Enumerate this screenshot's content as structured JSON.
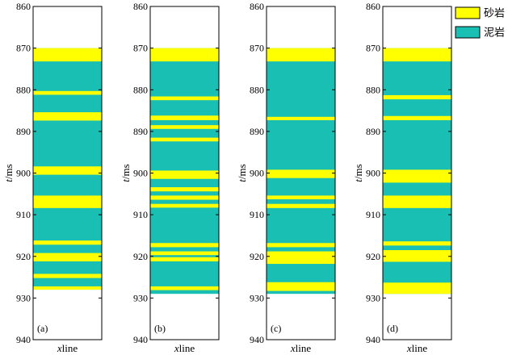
{
  "chart_data": {
    "type": "lithology-column",
    "ylim": [
      860,
      940
    ],
    "yticks": [
      860,
      870,
      880,
      890,
      900,
      910,
      920,
      930,
      940
    ],
    "ylabel_italic": "t",
    "ylabel_unit": "/ms",
    "xlabel": "xline",
    "colors": {
      "sand": "#ffff00",
      "mud": "#1abfb3"
    },
    "legend": [
      {
        "key": "sand",
        "label": "砂岩"
      },
      {
        "key": "mud",
        "label": "泥岩"
      }
    ],
    "panels": [
      {
        "label": "(a)",
        "top": 870,
        "bottom": 928,
        "sand_intervals": [
          [
            870,
            873.2
          ],
          [
            880.3,
            881.2
          ],
          [
            885.4,
            887.4
          ],
          [
            898.4,
            900.4
          ],
          [
            905.4,
            908.4
          ],
          [
            916.2,
            917.2
          ],
          [
            919.2,
            921.2
          ],
          [
            924.2,
            925.2
          ],
          [
            927.2,
            928.0
          ]
        ]
      },
      {
        "label": "(b)",
        "top": 870,
        "bottom": 929,
        "sand_intervals": [
          [
            870,
            873.2
          ],
          [
            881.6,
            882.5
          ],
          [
            886.2,
            887.3
          ],
          [
            888.5,
            889.4
          ],
          [
            891.5,
            892.4
          ],
          [
            899.4,
            901.4
          ],
          [
            903.4,
            904.4
          ],
          [
            905.4,
            906.4
          ],
          [
            907.4,
            908.3
          ],
          [
            916.8,
            917.8
          ],
          [
            918.8,
            919.7
          ],
          [
            920.2,
            921.2
          ],
          [
            927.2,
            928.1
          ]
        ]
      },
      {
        "label": "(c)",
        "top": 870,
        "bottom": 929,
        "sand_intervals": [
          [
            870,
            873.2
          ],
          [
            886.5,
            887.3
          ],
          [
            899.2,
            901.2
          ],
          [
            905.4,
            906.3
          ],
          [
            907.4,
            908.4
          ],
          [
            916.8,
            917.8
          ],
          [
            918.8,
            921.8
          ],
          [
            926.2,
            928.3
          ]
        ]
      },
      {
        "label": "(d)",
        "top": 870,
        "bottom": 929,
        "sand_intervals": [
          [
            870,
            873.2
          ],
          [
            881.3,
            882.3
          ],
          [
            886.3,
            887.3
          ],
          [
            899.2,
            902.3
          ],
          [
            905.4,
            908.4
          ],
          [
            916.4,
            917.4
          ],
          [
            918.5,
            921.3
          ],
          [
            926.3,
            929.0
          ]
        ]
      }
    ]
  }
}
